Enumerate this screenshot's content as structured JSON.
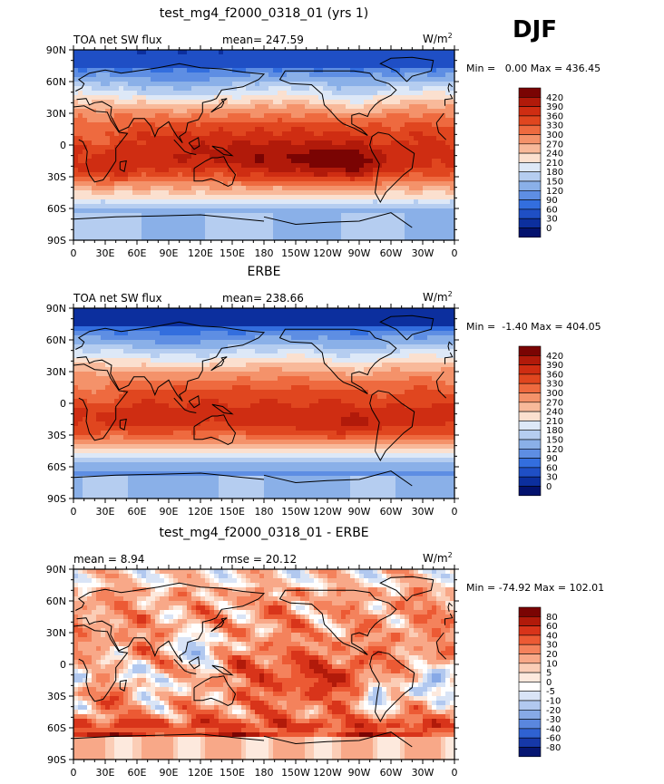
{
  "season": "DJF",
  "panels": [
    {
      "id": "model",
      "title": "test_mg4_f2000_0318_01 (yrs 1)",
      "left_label": "TOA net SW flux",
      "center_label": "mean= 247.59",
      "units_base": "W/m",
      "units_exp": "2",
      "minmax": "Min =   0.00 Max = 436.45",
      "field": "model",
      "colorbar": {
        "labels": [
          "420",
          "390",
          "360",
          "330",
          "300",
          "270",
          "240",
          "210",
          "180",
          "150",
          "120",
          "90",
          "60",
          "30",
          "0"
        ],
        "colors": [
          "#7a0403",
          "#b11a0a",
          "#cf2d12",
          "#e0461f",
          "#ee6a3f",
          "#f4926a",
          "#f8b99a",
          "#fbe0cf",
          "#dde8f7",
          "#b5cdf0",
          "#8ab0e8",
          "#5e8ee3",
          "#336ede",
          "#1f4fc5",
          "#0c2f9e",
          "#03126e"
        ]
      }
    },
    {
      "id": "obs",
      "title": "ERBE",
      "left_label": "TOA net SW flux",
      "center_label": "mean= 238.66",
      "units_base": "W/m",
      "units_exp": "2",
      "minmax": "Min =  -1.40 Max = 404.05",
      "field": "obs",
      "colorbar": {
        "labels": [
          "420",
          "390",
          "360",
          "330",
          "300",
          "270",
          "240",
          "210",
          "180",
          "150",
          "120",
          "90",
          "60",
          "30",
          "0"
        ],
        "colors": [
          "#7a0403",
          "#b11a0a",
          "#cf2d12",
          "#e0461f",
          "#ee6a3f",
          "#f4926a",
          "#f8b99a",
          "#fbe0cf",
          "#dde8f7",
          "#b5cdf0",
          "#8ab0e8",
          "#5e8ee3",
          "#336ede",
          "#1f4fc5",
          "#0c2f9e",
          "#03126e"
        ]
      }
    },
    {
      "id": "diff",
      "title": "test_mg4_f2000_0318_01 - ERBE",
      "left_label": "mean =    8.94",
      "center_label": "rmse =   20.12",
      "units_base": "W/m",
      "units_exp": "2",
      "minmax": "Min = -74.92 Max = 102.01",
      "field": "diff",
      "colorbar": {
        "labels": [
          "80",
          "60",
          "40",
          "30",
          "20",
          "10",
          "5",
          "0",
          "-5",
          "-10",
          "-20",
          "-30",
          "-40",
          "-60",
          "-80"
        ],
        "colors": [
          "#7a0403",
          "#b11a0a",
          "#d8341a",
          "#ec5a34",
          "#f4825c",
          "#f8a888",
          "#fbcdb6",
          "#fde9dd",
          "#ffffff",
          "#d9e4f6",
          "#b1c8ef",
          "#87a9e6",
          "#5a87de",
          "#2f62d2",
          "#1638a8",
          "#061672"
        ]
      }
    }
  ],
  "lat_ticks": [
    "90N",
    "60N",
    "30N",
    "0",
    "30S",
    "60S",
    "90S"
  ],
  "lon_ticks": [
    "0",
    "30E",
    "60E",
    "90E",
    "120E",
    "150E",
    "180",
    "150W",
    "120W",
    "90W",
    "60W",
    "30W",
    "0"
  ]
}
